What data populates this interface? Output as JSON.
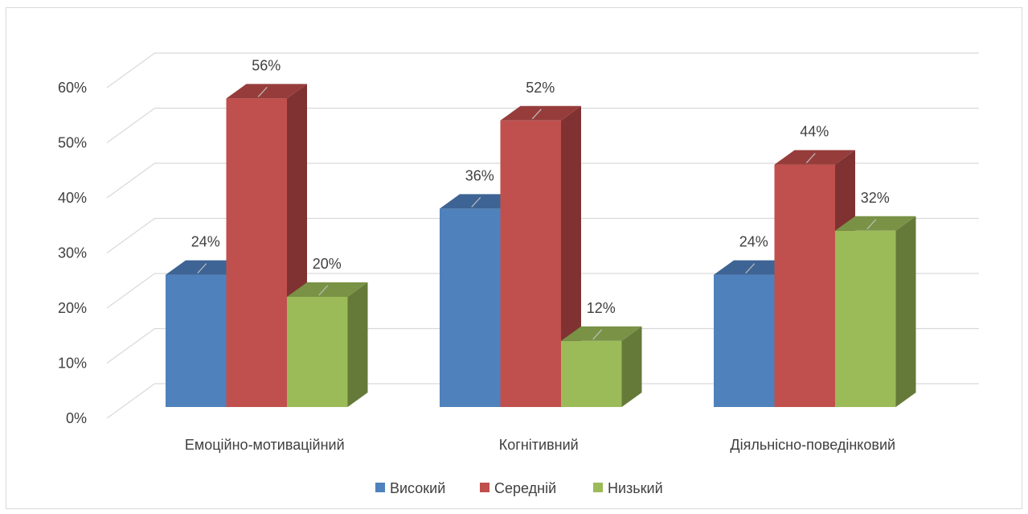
{
  "chart_data": {
    "type": "bar",
    "categories": [
      "Емоційно-мотиваційний",
      "Когнітивний",
      "Діяльнісно-поведінковий"
    ],
    "series": [
      {
        "name": "Високий",
        "values": [
          24,
          36,
          24
        ],
        "labels": [
          "24%",
          "36%",
          "24%"
        ],
        "color": "#4f81bd",
        "top": "#3d6494",
        "side": "#375a85"
      },
      {
        "name": "Середній",
        "values": [
          56,
          52,
          44
        ],
        "labels": [
          "56%",
          "52%",
          "44%"
        ],
        "color": "#c0504d",
        "top": "#963d3b",
        "side": "#7f3231"
      },
      {
        "name": "Низький",
        "values": [
          20,
          12,
          32
        ],
        "labels": [
          "20%",
          "12%",
          "32%"
        ],
        "color": "#9bbb59",
        "top": "#799245",
        "side": "#657a39"
      }
    ],
    "yticks": [
      "0%",
      "10%",
      "20%",
      "30%",
      "40%",
      "50%",
      "60%"
    ],
    "ylim": [
      0,
      60
    ],
    "grid": true,
    "legend_position": "bottom",
    "gridline_color": "#d9d9d9"
  }
}
